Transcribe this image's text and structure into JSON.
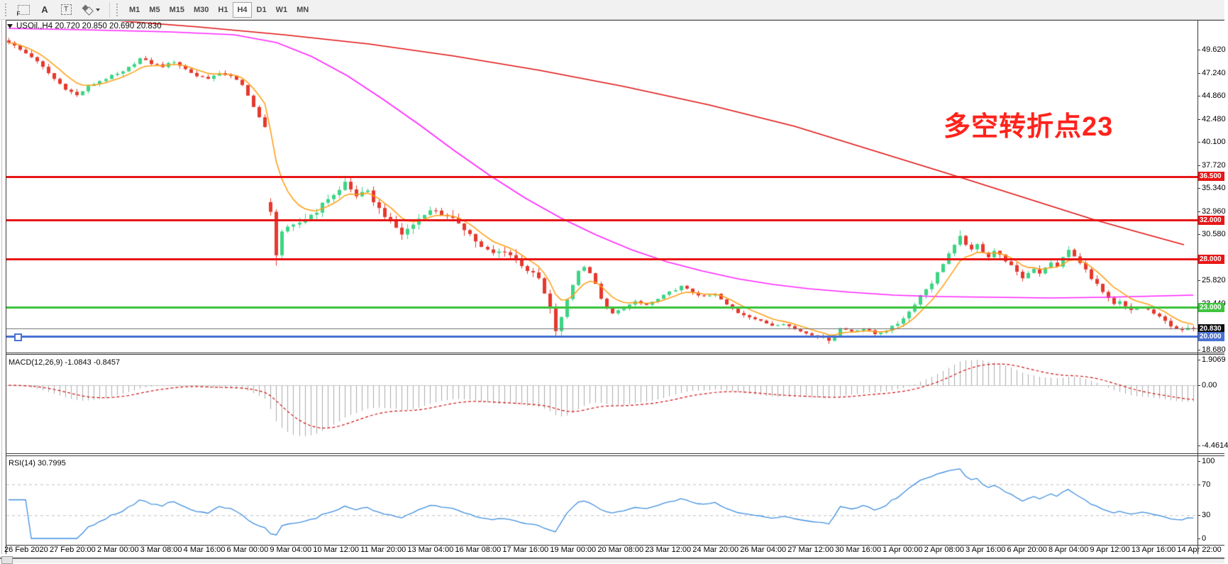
{
  "toolbar": {
    "tools": {
      "grid_label": "F",
      "a_label": "A",
      "t_label": "T"
    },
    "timeframes": [
      "M1",
      "M5",
      "M15",
      "M30",
      "H1",
      "H4",
      "D1",
      "W1",
      "MN"
    ],
    "active_timeframe": "H4"
  },
  "chart": {
    "title": "USOil.,H4 20.720 20.850 20.690 20.830",
    "annotation": {
      "text": "多空转折点23",
      "color": "#FF231C"
    },
    "price_axis_labels": [
      "49.620",
      "47.240",
      "44.860",
      "42.480",
      "40.100",
      "37.720",
      "35.340",
      "32.960",
      "30.580",
      "25.820",
      "23.440",
      "18.680"
    ],
    "hlines": [
      {
        "price": 36.5,
        "label": "36.500",
        "color": "#E81717",
        "thickness": 3
      },
      {
        "price": 32.0,
        "label": "32.000",
        "color": "#E81717",
        "thickness": 3
      },
      {
        "price": 28.0,
        "label": "28.000",
        "color": "#E81717",
        "thickness": 3
      },
      {
        "price": 23.0,
        "label": "23.000",
        "color": "#3FC43F",
        "thickness": 3
      },
      {
        "price": 20.83,
        "label": "20.830",
        "color": "#7A7A7A",
        "thickness": 1,
        "badge": "#101010",
        "role": "current-price"
      },
      {
        "price": 20.0,
        "label": "20.000",
        "color": "#4A72D4",
        "thickness": 3,
        "handle": true
      }
    ]
  },
  "macd": {
    "label": "MACD(12,26,9) -1.0843 -0.8457",
    "axis": [
      "1.9069",
      "0.00",
      "-4.4614"
    ]
  },
  "rsi": {
    "label": "RSI(14) 30.7995",
    "axis": [
      "100",
      "70",
      "30",
      "0"
    ]
  },
  "date_axis": [
    "26 Feb 2020",
    "27 Feb 20:00",
    "2 Mar 00:00",
    "3 Mar 08:00",
    "4 Mar 16:00",
    "6 Mar 00:00",
    "9 Mar 04:00",
    "10 Mar 12:00",
    "11 Mar 20:00",
    "13 Mar 04:00",
    "16 Mar 08:00",
    "17 Mar 16:00",
    "19 Mar 00:00",
    "20 Mar 08:00",
    "23 Mar 12:00",
    "24 Mar 20:00",
    "26 Mar 04:00",
    "27 Mar 12:00",
    "30 Mar 16:00",
    "1 Apr 00:00",
    "2 Apr 08:00",
    "3 Apr 16:00",
    "6 Apr 20:00",
    "8 Apr 04:00",
    "9 Apr 12:00",
    "13 Apr 16:00",
    "14 Apr 22:00"
  ],
  "chart_data": {
    "type": "candlestick",
    "symbol": "USOil",
    "timeframe": "H4",
    "current": {
      "open": 20.72,
      "high": 20.85,
      "low": 20.69,
      "close": 20.83
    },
    "bars": 209,
    "close_waypoints": [
      [
        0,
        50.4
      ],
      [
        2,
        49.6
      ],
      [
        4,
        48.9
      ],
      [
        6,
        47.8
      ],
      [
        8,
        46.6
      ],
      [
        10,
        45.6
      ],
      [
        12,
        44.9
      ],
      [
        14,
        45.8
      ],
      [
        16,
        46.4
      ],
      [
        18,
        46.9
      ],
      [
        20,
        47.3
      ],
      [
        23,
        48.7
      ],
      [
        25,
        48.2
      ],
      [
        27,
        47.9
      ],
      [
        29,
        48.4
      ],
      [
        31,
        47.6
      ],
      [
        33,
        46.9
      ],
      [
        35,
        46.7
      ],
      [
        37,
        47.1
      ],
      [
        39,
        47.0
      ],
      [
        41,
        45.9
      ],
      [
        43,
        43.8
      ],
      [
        45,
        41.5
      ],
      [
        46,
        32.9
      ],
      [
        47,
        28.6
      ],
      [
        48,
        30.9
      ],
      [
        50,
        31.4
      ],
      [
        52,
        32.2
      ],
      [
        54,
        33.0
      ],
      [
        56,
        34.3
      ],
      [
        58,
        35.1
      ],
      [
        59,
        36.0
      ],
      [
        60,
        35.2
      ],
      [
        61,
        34.6
      ],
      [
        63,
        34.9
      ],
      [
        65,
        33.2
      ],
      [
        67,
        31.9
      ],
      [
        69,
        30.6
      ],
      [
        71,
        31.6
      ],
      [
        73,
        32.8
      ],
      [
        75,
        33.1
      ],
      [
        77,
        32.3
      ],
      [
        79,
        31.8
      ],
      [
        81,
        30.6
      ],
      [
        83,
        29.2
      ],
      [
        85,
        28.6
      ],
      [
        87,
        28.9
      ],
      [
        89,
        28.0
      ],
      [
        91,
        26.9
      ],
      [
        93,
        26.0
      ],
      [
        95,
        22.8
      ],
      [
        96,
        20.6
      ],
      [
        97,
        21.9
      ],
      [
        98,
        23.9
      ],
      [
        99,
        25.4
      ],
      [
        100,
        26.8
      ],
      [
        101,
        27.3
      ],
      [
        102,
        26.6
      ],
      [
        103,
        25.4
      ],
      [
        104,
        24.0
      ],
      [
        105,
        22.9
      ],
      [
        106,
        22.4
      ],
      [
        108,
        23.0
      ],
      [
        110,
        23.6
      ],
      [
        112,
        23.3
      ],
      [
        114,
        23.9
      ],
      [
        116,
        24.6
      ],
      [
        118,
        25.2
      ],
      [
        120,
        24.6
      ],
      [
        122,
        24.1
      ],
      [
        124,
        24.4
      ],
      [
        126,
        23.3
      ],
      [
        128,
        22.5
      ],
      [
        130,
        22.1
      ],
      [
        132,
        21.6
      ],
      [
        134,
        21.2
      ],
      [
        136,
        21.4
      ],
      [
        138,
        20.8
      ],
      [
        140,
        20.4
      ],
      [
        142,
        20.1
      ],
      [
        144,
        19.6
      ],
      [
        145,
        20.2
      ],
      [
        146,
        20.9
      ],
      [
        148,
        20.6
      ],
      [
        150,
        20.9
      ],
      [
        152,
        20.3
      ],
      [
        154,
        20.7
      ],
      [
        156,
        21.4
      ],
      [
        158,
        22.6
      ],
      [
        160,
        24.3
      ],
      [
        162,
        25.6
      ],
      [
        164,
        27.6
      ],
      [
        165,
        28.6
      ],
      [
        166,
        29.4
      ],
      [
        167,
        30.3
      ],
      [
        168,
        29.6
      ],
      [
        169,
        28.9
      ],
      [
        170,
        29.5
      ],
      [
        171,
        28.8
      ],
      [
        172,
        28.3
      ],
      [
        173,
        28.9
      ],
      [
        174,
        28.4
      ],
      [
        175,
        27.9
      ],
      [
        176,
        27.3
      ],
      [
        177,
        26.6
      ],
      [
        178,
        26.1
      ],
      [
        179,
        26.6
      ],
      [
        180,
        27.1
      ],
      [
        181,
        26.6
      ],
      [
        182,
        27.2
      ],
      [
        183,
        27.6
      ],
      [
        184,
        27.2
      ],
      [
        185,
        28.3
      ],
      [
        186,
        28.9
      ],
      [
        187,
        28.3
      ],
      [
        188,
        27.6
      ],
      [
        189,
        26.9
      ],
      [
        190,
        26.1
      ],
      [
        191,
        25.4
      ],
      [
        192,
        24.6
      ],
      [
        193,
        23.9
      ],
      [
        194,
        23.3
      ],
      [
        195,
        23.6
      ],
      [
        196,
        23.1
      ],
      [
        197,
        22.7
      ],
      [
        198,
        22.9
      ],
      [
        199,
        23.1
      ],
      [
        200,
        22.8
      ],
      [
        201,
        22.4
      ],
      [
        202,
        22.0
      ],
      [
        203,
        21.6
      ],
      [
        204,
        21.2
      ],
      [
        205,
        20.9
      ],
      [
        206,
        20.6
      ],
      [
        207,
        20.9
      ],
      [
        208,
        20.83
      ]
    ],
    "close_pins": {
      "46": 32.9,
      "59": 36.0,
      "96": 20.6,
      "144": 19.6,
      "208": 20.83
    },
    "gap_opens": {
      "46": 33.9
    },
    "wick_pins": {
      "46": {
        "h": 34.3
      },
      "47": {
        "l": 27.35
      },
      "59": {
        "h": 36.62
      },
      "96": {
        "l": 20.05
      },
      "144": {
        "l": 19.27
      },
      "167": {
        "h": 31.0
      }
    },
    "volatility_eras": [
      [
        0,
        0.45
      ],
      [
        45,
        0.9
      ],
      [
        98,
        0.4
      ],
      [
        156,
        0.55
      ]
    ],
    "price_axis": {
      "top": 49.62,
      "tick_step": 2.38,
      "bottom_label": 18.68
    },
    "moving_averages": {
      "fast_period": 7,
      "magenta_path": [
        [
          12,
          40
        ],
        [
          120,
          42
        ],
        [
          240,
          45
        ],
        [
          330,
          49
        ],
        [
          390,
          60
        ],
        [
          440,
          80
        ],
        [
          490,
          107
        ],
        [
          540,
          140
        ],
        [
          590,
          175
        ],
        [
          640,
          212
        ],
        [
          690,
          247
        ],
        [
          740,
          279
        ],
        [
          790,
          307
        ],
        [
          840,
          331
        ],
        [
          890,
          352
        ],
        [
          940,
          369
        ],
        [
          990,
          382
        ],
        [
          1040,
          393
        ],
        [
          1090,
          401
        ],
        [
          1140,
          407
        ],
        [
          1200,
          412
        ],
        [
          1260,
          416
        ],
        [
          1320,
          418
        ],
        [
          1400,
          419
        ],
        [
          1480,
          420
        ],
        [
          1560,
          419
        ],
        [
          1640,
          417
        ],
        [
          1682,
          416
        ]
      ],
      "red_path": [
        [
          150,
          28
        ],
        [
          280,
          38
        ],
        [
          400,
          49
        ],
        [
          520,
          62
        ],
        [
          640,
          79
        ],
        [
          760,
          99
        ],
        [
          880,
          122
        ],
        [
          1000,
          148
        ],
        [
          1120,
          178
        ],
        [
          1240,
          215
        ],
        [
          1360,
          252
        ],
        [
          1480,
          290
        ],
        [
          1540,
          309
        ],
        [
          1600,
          326
        ],
        [
          1669,
          345
        ]
      ]
    },
    "indicators": {
      "macd": {
        "fast": 12,
        "slow": 26,
        "signal": 9,
        "main_value": -1.0843,
        "signal_value": -0.8457,
        "scale_max": 1.9069,
        "scale_min": -4.4614
      },
      "rsi": {
        "period": 14,
        "value": 30.7995,
        "levels": [
          70,
          30
        ]
      }
    },
    "colors": {
      "bull": "#3DD584",
      "bear": "#E5392E",
      "ma_fast": "#FFA018",
      "ma_mid": "#FF22FF",
      "ma_slow": "#E01010",
      "macd_hist": "#ABABAB",
      "macd_signal": "#D01010",
      "rsi_line": "#3E8EDE",
      "level_red": "#E81717",
      "level_green": "#3FC43F",
      "level_blue": "#4A72D4"
    }
  }
}
